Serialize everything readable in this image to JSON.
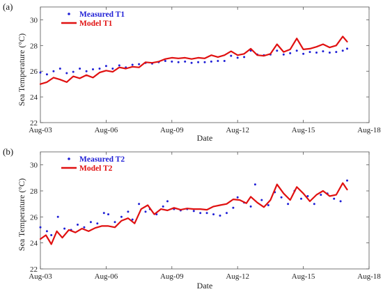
{
  "chart_data": [
    {
      "type": "line",
      "panel_label": "(a)",
      "xlabel": "Date",
      "ylabel": "Sea Temperature (°C)",
      "xlim": [
        3,
        18
      ],
      "ylim": [
        22,
        31
      ],
      "x_ticks": [
        3,
        6,
        9,
        12,
        15,
        18
      ],
      "x_tick_labels": [
        "Aug-03",
        "Aug-06",
        "Aug-09",
        "Aug-12",
        "Aug-15",
        "Aug-18"
      ],
      "y_ticks": [
        22,
        24,
        26,
        28,
        30
      ],
      "y_tick_labels": [
        "22",
        "24",
        "26",
        "28",
        "30"
      ],
      "legend": "top-left",
      "series": [
        {
          "name": "Measured T1",
          "style": "dots",
          "color": "#1f1fd6",
          "points": [
            [
              3.0,
              25.9
            ],
            [
              3.3,
              25.75
            ],
            [
              3.6,
              26.0
            ],
            [
              3.9,
              26.2
            ],
            [
              4.2,
              25.85
            ],
            [
              4.5,
              25.95
            ],
            [
              4.8,
              26.2
            ],
            [
              5.1,
              26.0
            ],
            [
              5.4,
              26.15
            ],
            [
              5.7,
              26.2
            ],
            [
              6.0,
              26.4
            ],
            [
              6.3,
              26.2
            ],
            [
              6.6,
              26.45
            ],
            [
              6.9,
              26.3
            ],
            [
              7.2,
              26.5
            ],
            [
              7.5,
              26.55
            ],
            [
              7.8,
              26.65
            ],
            [
              8.1,
              26.6
            ],
            [
              8.4,
              26.7
            ],
            [
              8.7,
              26.8
            ],
            [
              9.0,
              26.75
            ],
            [
              9.3,
              26.7
            ],
            [
              9.6,
              26.75
            ],
            [
              9.9,
              26.65
            ],
            [
              10.2,
              26.7
            ],
            [
              10.5,
              26.7
            ],
            [
              10.8,
              26.75
            ],
            [
              11.1,
              26.8
            ],
            [
              11.4,
              26.8
            ],
            [
              11.7,
              27.2
            ],
            [
              12.0,
              27.05
            ],
            [
              12.3,
              27.1
            ],
            [
              12.6,
              27.6
            ],
            [
              12.9,
              27.3
            ],
            [
              13.2,
              27.25
            ],
            [
              13.5,
              27.3
            ],
            [
              13.8,
              27.6
            ],
            [
              14.1,
              27.3
            ],
            [
              14.4,
              27.4
            ],
            [
              14.7,
              27.6
            ],
            [
              15.0,
              27.35
            ],
            [
              15.3,
              27.5
            ],
            [
              15.6,
              27.45
            ],
            [
              15.9,
              27.55
            ],
            [
              16.2,
              27.45
            ],
            [
              16.5,
              27.5
            ],
            [
              16.8,
              27.6
            ],
            [
              17.0,
              27.75
            ]
          ]
        },
        {
          "name": "Model T1",
          "style": "line",
          "color": "#e01010",
          "points": [
            [
              3.0,
              25.0
            ],
            [
              3.3,
              25.15
            ],
            [
              3.6,
              25.5
            ],
            [
              3.9,
              25.35
            ],
            [
              4.2,
              25.15
            ],
            [
              4.5,
              25.6
            ],
            [
              4.8,
              25.45
            ],
            [
              5.1,
              25.7
            ],
            [
              5.4,
              25.5
            ],
            [
              5.7,
              25.9
            ],
            [
              6.0,
              26.05
            ],
            [
              6.3,
              25.95
            ],
            [
              6.6,
              26.3
            ],
            [
              6.9,
              26.2
            ],
            [
              7.2,
              26.35
            ],
            [
              7.5,
              26.3
            ],
            [
              7.8,
              26.7
            ],
            [
              8.1,
              26.65
            ],
            [
              8.4,
              26.75
            ],
            [
              8.7,
              26.95
            ],
            [
              9.0,
              27.05
            ],
            [
              9.3,
              27.0
            ],
            [
              9.6,
              27.05
            ],
            [
              9.9,
              26.95
            ],
            [
              10.2,
              27.05
            ],
            [
              10.5,
              27.0
            ],
            [
              10.8,
              27.25
            ],
            [
              11.1,
              27.1
            ],
            [
              11.4,
              27.25
            ],
            [
              11.7,
              27.55
            ],
            [
              12.0,
              27.25
            ],
            [
              12.3,
              27.35
            ],
            [
              12.6,
              27.75
            ],
            [
              12.9,
              27.25
            ],
            [
              13.2,
              27.2
            ],
            [
              13.5,
              27.35
            ],
            [
              13.8,
              28.1
            ],
            [
              14.1,
              27.5
            ],
            [
              14.4,
              27.7
            ],
            [
              14.7,
              28.55
            ],
            [
              15.0,
              27.7
            ],
            [
              15.3,
              27.75
            ],
            [
              15.6,
              27.9
            ],
            [
              15.9,
              28.1
            ],
            [
              16.2,
              27.85
            ],
            [
              16.5,
              28.0
            ],
            [
              16.8,
              28.7
            ],
            [
              17.0,
              28.3
            ]
          ]
        }
      ]
    },
    {
      "type": "line",
      "panel_label": "(b)",
      "xlabel": "Date",
      "ylabel": "Sea Temperature (°C)",
      "xlim": [
        3,
        18
      ],
      "ylim": [
        22,
        31
      ],
      "x_ticks": [
        3,
        6,
        9,
        12,
        15,
        18
      ],
      "x_tick_labels": [
        "Aug-03",
        "Aug-06",
        "Aug-09",
        "Aug-12",
        "Aug-15",
        "Aug-18"
      ],
      "y_ticks": [
        22,
        24,
        26,
        28,
        30
      ],
      "y_tick_labels": [
        "22",
        "24",
        "26",
        "28",
        "30"
      ],
      "legend": "top-left",
      "series": [
        {
          "name": "Measured T2",
          "style": "dots",
          "color": "#1f1fd6",
          "points": [
            [
              3.0,
              25.2
            ],
            [
              3.3,
              24.9
            ],
            [
              3.5,
              24.6
            ],
            [
              3.8,
              26.0
            ],
            [
              4.1,
              25.1
            ],
            [
              4.4,
              25.0
            ],
            [
              4.7,
              25.4
            ],
            [
              5.0,
              25.2
            ],
            [
              5.3,
              25.6
            ],
            [
              5.6,
              25.5
            ],
            [
              5.9,
              26.3
            ],
            [
              6.1,
              26.2
            ],
            [
              6.4,
              25.6
            ],
            [
              6.7,
              26.0
            ],
            [
              7.0,
              26.4
            ],
            [
              7.2,
              25.8
            ],
            [
              7.5,
              27.0
            ],
            [
              7.8,
              26.4
            ],
            [
              8.0,
              26.6
            ],
            [
              8.3,
              26.2
            ],
            [
              8.6,
              26.8
            ],
            [
              8.8,
              27.2
            ],
            [
              9.1,
              26.6
            ],
            [
              9.4,
              26.5
            ],
            [
              9.7,
              26.6
            ],
            [
              10.0,
              26.45
            ],
            [
              10.3,
              26.3
            ],
            [
              10.6,
              26.3
            ],
            [
              10.9,
              26.2
            ],
            [
              11.2,
              26.1
            ],
            [
              11.5,
              26.3
            ],
            [
              11.8,
              26.7
            ],
            [
              12.0,
              27.5
            ],
            [
              12.3,
              27.1
            ],
            [
              12.6,
              26.8
            ],
            [
              12.8,
              28.5
            ],
            [
              13.1,
              27.3
            ],
            [
              13.4,
              26.9
            ],
            [
              13.7,
              27.9
            ],
            [
              14.0,
              27.5
            ],
            [
              14.3,
              27.0
            ],
            [
              14.6,
              28.0
            ],
            [
              14.9,
              27.4
            ],
            [
              15.2,
              27.6
            ],
            [
              15.5,
              27.0
            ],
            [
              15.8,
              27.7
            ],
            [
              16.1,
              27.8
            ],
            [
              16.4,
              27.4
            ],
            [
              16.7,
              27.2
            ],
            [
              17.0,
              28.8
            ]
          ]
        },
        {
          "name": "Model T2",
          "style": "line",
          "color": "#e01010",
          "points": [
            [
              3.0,
              24.3
            ],
            [
              3.25,
              24.6
            ],
            [
              3.5,
              23.9
            ],
            [
              3.75,
              24.9
            ],
            [
              4.0,
              24.4
            ],
            [
              4.3,
              25.0
            ],
            [
              4.6,
              24.8
            ],
            [
              4.9,
              25.1
            ],
            [
              5.2,
              24.9
            ],
            [
              5.5,
              25.15
            ],
            [
              5.8,
              25.3
            ],
            [
              6.1,
              25.3
            ],
            [
              6.4,
              25.2
            ],
            [
              6.7,
              25.7
            ],
            [
              7.0,
              25.9
            ],
            [
              7.3,
              25.5
            ],
            [
              7.6,
              26.6
            ],
            [
              7.9,
              26.9
            ],
            [
              8.2,
              26.2
            ],
            [
              8.5,
              26.6
            ],
            [
              8.8,
              26.5
            ],
            [
              9.1,
              26.7
            ],
            [
              9.4,
              26.55
            ],
            [
              9.7,
              26.65
            ],
            [
              10.0,
              26.6
            ],
            [
              10.3,
              26.6
            ],
            [
              10.6,
              26.55
            ],
            [
              10.9,
              26.8
            ],
            [
              11.2,
              26.9
            ],
            [
              11.5,
              27.0
            ],
            [
              11.8,
              27.35
            ],
            [
              12.1,
              27.3
            ],
            [
              12.4,
              27.05
            ],
            [
              12.6,
              27.55
            ],
            [
              12.9,
              27.1
            ],
            [
              13.2,
              26.75
            ],
            [
              13.5,
              27.3
            ],
            [
              13.8,
              28.5
            ],
            [
              14.1,
              27.8
            ],
            [
              14.4,
              27.3
            ],
            [
              14.7,
              28.3
            ],
            [
              15.0,
              27.8
            ],
            [
              15.3,
              27.2
            ],
            [
              15.6,
              27.7
            ],
            [
              15.9,
              28.0
            ],
            [
              16.2,
              27.6
            ],
            [
              16.5,
              27.7
            ],
            [
              16.8,
              28.6
            ],
            [
              17.0,
              28.1
            ]
          ]
        }
      ]
    }
  ]
}
